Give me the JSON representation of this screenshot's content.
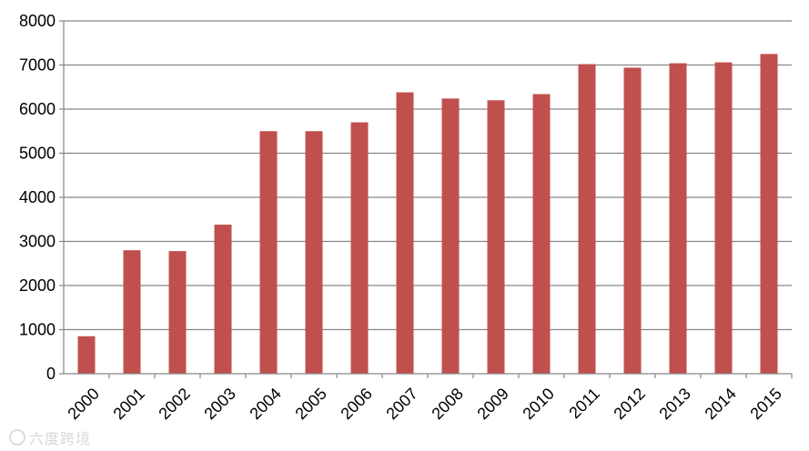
{
  "chart_data": {
    "type": "bar",
    "categories": [
      "2000",
      "2001",
      "2002",
      "2003",
      "2004",
      "2005",
      "2006",
      "2007",
      "2008",
      "2009",
      "2010",
      "2011",
      "2012",
      "2013",
      "2014",
      "2015"
    ],
    "values": [
      850,
      2800,
      2780,
      3380,
      5500,
      5500,
      5700,
      6380,
      6240,
      6200,
      6340,
      7020,
      6940,
      7040,
      7060,
      7250
    ],
    "title": "",
    "xlabel": "",
    "ylabel": "",
    "ylim": [
      0,
      8000
    ],
    "yticks": [
      0,
      1000,
      2000,
      3000,
      4000,
      5000,
      6000,
      7000,
      8000
    ],
    "grid": true,
    "legend": "none",
    "bar_color": "#c0504d",
    "grid_color": "#868686",
    "axis_color": "#868686"
  },
  "watermark": {
    "text": "六度跨境"
  }
}
